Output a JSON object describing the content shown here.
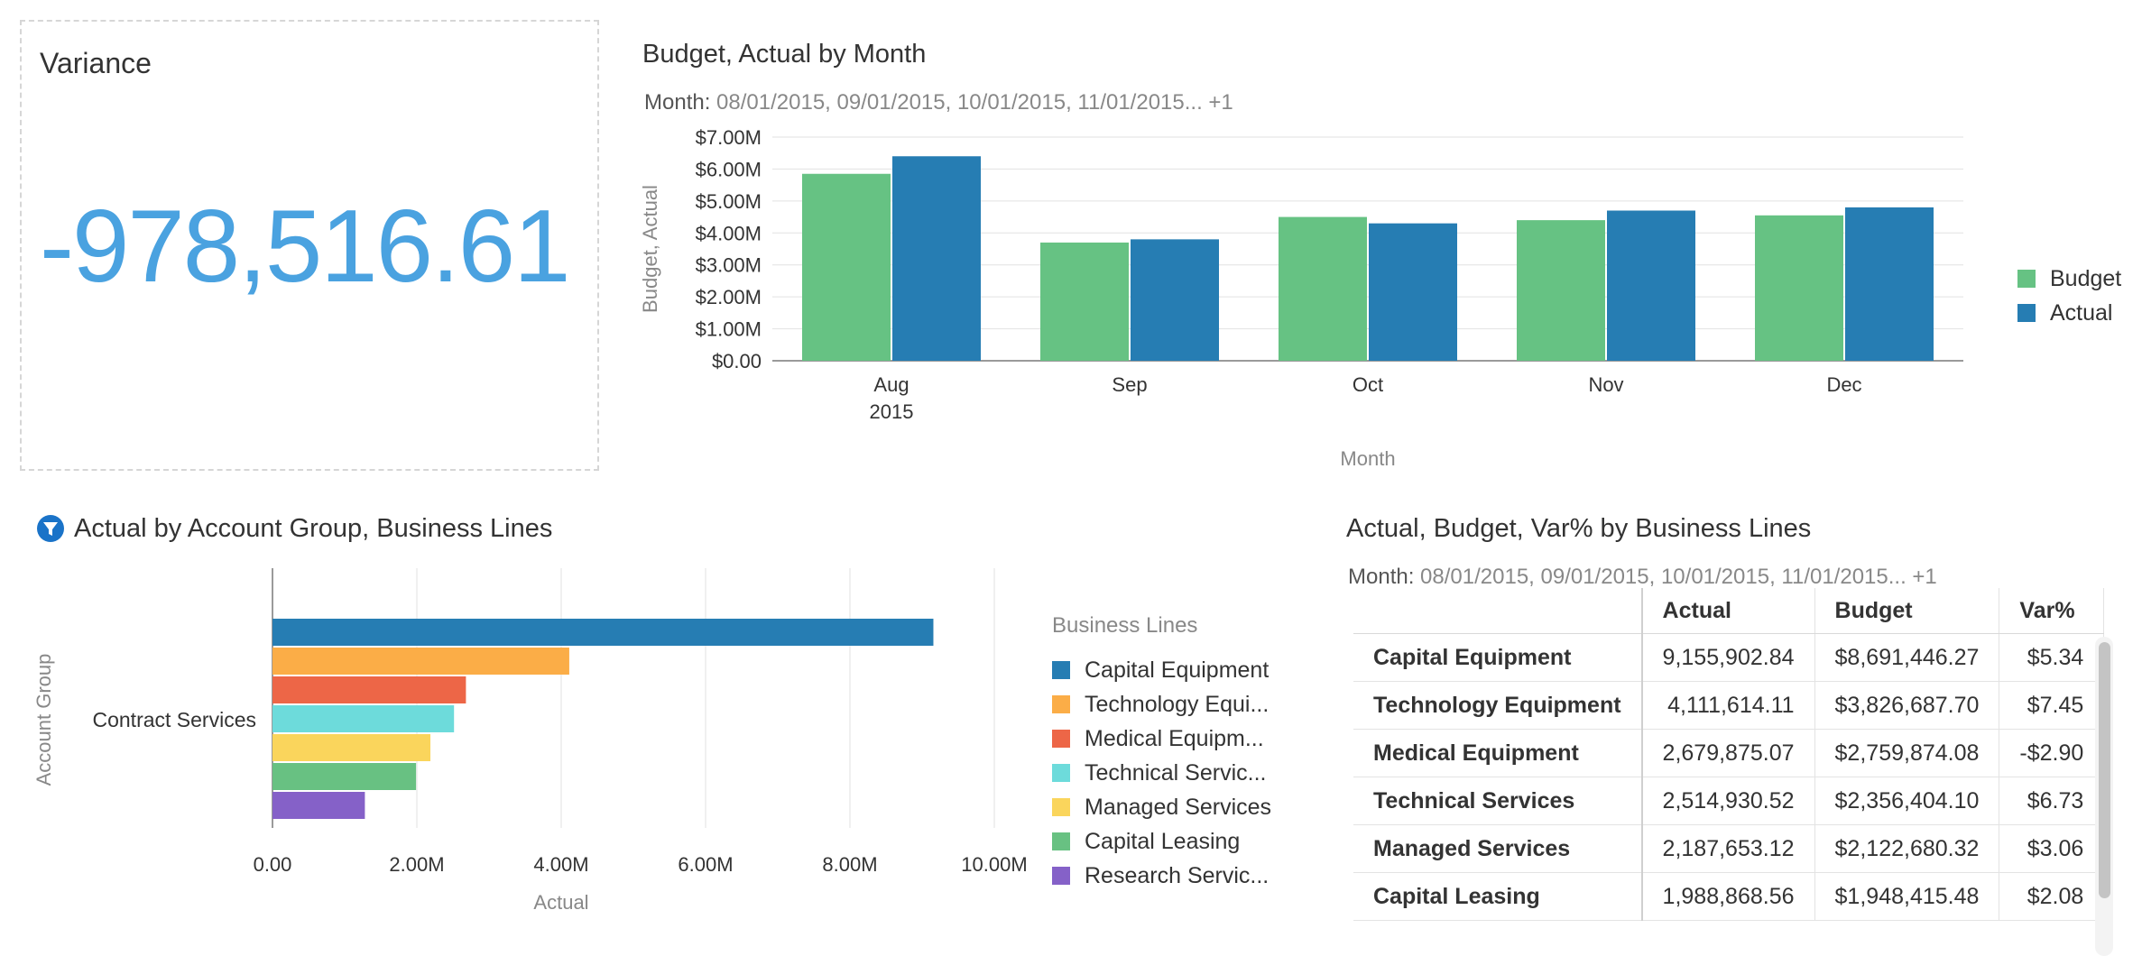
{
  "variance": {
    "title": "Variance",
    "value": "-978,516.61",
    "value_color": "#4aa2e0"
  },
  "budget_actual": {
    "title": "Budget, Actual by Month",
    "filter_label": "Month:",
    "filter_value": "08/01/2015, 09/01/2015, 10/01/2015, 11/01/2015... +1",
    "legend": [
      {
        "label": "Budget",
        "color": "#66c283"
      },
      {
        "label": "Actual",
        "color": "#267db3"
      }
    ]
  },
  "account_group": {
    "title": "Actual by Account Group, Business Lines",
    "filter_icon": "filter-icon",
    "legend_title": "Business Lines",
    "legend": [
      {
        "label": "Capital Equipment",
        "color": "#267db3"
      },
      {
        "label": "Technology Equi...",
        "color": "#fbad47"
      },
      {
        "label": "Medical Equipm...",
        "color": "#ed6647"
      },
      {
        "label": "Technical Servic...",
        "color": "#6ddbdb"
      },
      {
        "label": "Managed Services",
        "color": "#fad55c"
      },
      {
        "label": "Capital Leasing",
        "color": "#68c182"
      },
      {
        "label": "Research Servic...",
        "color": "#8561c8"
      }
    ]
  },
  "bl_table": {
    "title": "Actual, Budget, Var% by Business Lines",
    "filter_label": "Month:",
    "filter_value": "08/01/2015, 09/01/2015, 10/01/2015, 11/01/2015... +1",
    "headers": [
      "Actual",
      "Budget",
      "Var%"
    ],
    "rows": [
      {
        "name": "Capital Equipment",
        "actual": "9,155,902.84",
        "budget": "$8,691,446.27",
        "var": "$5.34"
      },
      {
        "name": "Technology Equipment",
        "actual": "4,111,614.11",
        "budget": "$3,826,687.70",
        "var": "$7.45"
      },
      {
        "name": "Medical Equipment",
        "actual": "2,679,875.07",
        "budget": "$2,759,874.08",
        "var": "-$2.90"
      },
      {
        "name": "Technical Services",
        "actual": "2,514,930.52",
        "budget": "$2,356,404.10",
        "var": "$6.73"
      },
      {
        "name": "Managed Services",
        "actual": "2,187,653.12",
        "budget": "$2,122,680.32",
        "var": "$3.06"
      },
      {
        "name": "Capital Leasing",
        "actual": "1,988,868.56",
        "budget": "$1,948,415.48",
        "var": "$2.08"
      }
    ]
  },
  "chart_data": [
    {
      "type": "bar",
      "title": "Budget, Actual by Month",
      "xlabel": "Month",
      "ylabel": "Budget, Actual",
      "categories": [
        "Aug",
        "Sep",
        "Oct",
        "Nov",
        "Dec"
      ],
      "category_sublabels": [
        "2015",
        "",
        "",
        "",
        ""
      ],
      "ylim": [
        0,
        7000000
      ],
      "yticks": [
        "$0.00",
        "$1.00M",
        "$2.00M",
        "$3.00M",
        "$4.00M",
        "$5.00M",
        "$6.00M",
        "$7.00M"
      ],
      "grid": true,
      "legend": "right",
      "series": [
        {
          "name": "Budget",
          "color": "#66c283",
          "values": [
            5850000,
            3700000,
            4500000,
            4400000,
            4550000
          ]
        },
        {
          "name": "Actual",
          "color": "#267db3",
          "values": [
            6400000,
            3800000,
            4300000,
            4700000,
            4800000
          ]
        }
      ]
    },
    {
      "type": "bar",
      "orientation": "horizontal",
      "title": "Actual by Account Group, Business Lines",
      "xlabel": "Actual",
      "ylabel": "Account Group",
      "categories": [
        "Contract Services"
      ],
      "xlim": [
        0,
        11000000
      ],
      "xticks": [
        "0.00",
        "2.00M",
        "4.00M",
        "6.00M",
        "8.00M",
        "10.00M"
      ],
      "grid": true,
      "legend": "right",
      "series": [
        {
          "name": "Capital Equipment",
          "color": "#267db3",
          "values": [
            9155902.84
          ]
        },
        {
          "name": "Technology Equipment",
          "color": "#fbad47",
          "values": [
            4111614.11
          ]
        },
        {
          "name": "Medical Equipment",
          "color": "#ed6647",
          "values": [
            2679875.07
          ]
        },
        {
          "name": "Technical Services",
          "color": "#6ddbdb",
          "values": [
            2514930.52
          ]
        },
        {
          "name": "Managed Services",
          "color": "#fad55c",
          "values": [
            2187653.12
          ]
        },
        {
          "name": "Capital Leasing",
          "color": "#68c182",
          "values": [
            1988868.56
          ]
        },
        {
          "name": "Research Services",
          "color": "#8561c8",
          "values": [
            1280000
          ]
        }
      ]
    }
  ]
}
